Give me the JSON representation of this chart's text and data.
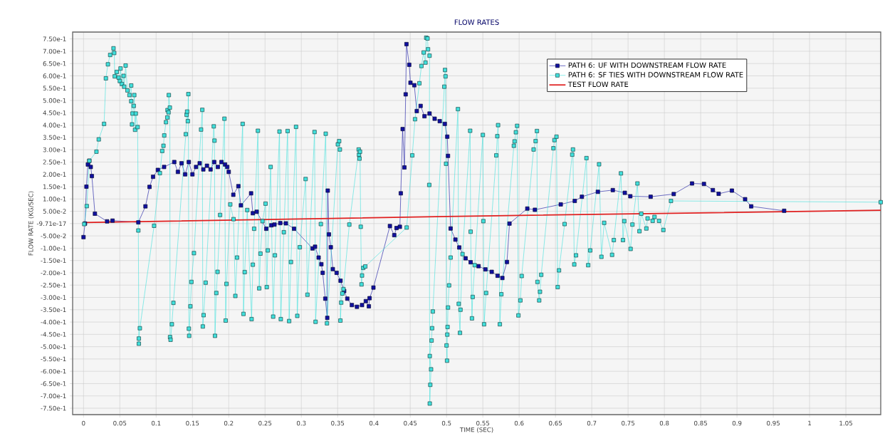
{
  "chart_data": {
    "type": "line",
    "title": "FLOW RATES",
    "xlabel": "TIME (SEC)",
    "ylabel": "FLOW RATE (KG/SEC)",
    "xlim": [
      -0.015,
      1.098
    ],
    "ylim": [
      -0.776,
      0.778
    ],
    "xticks": [
      0,
      0.05,
      0.1,
      0.15,
      0.2,
      0.25,
      0.3,
      0.35,
      0.4,
      0.45,
      0.5,
      0.55,
      0.6,
      0.65,
      0.7,
      0.75,
      0.8,
      0.85,
      0.9,
      0.95,
      1,
      1.05
    ],
    "yticks": [
      {
        "value": 0.75,
        "label": "7.50e-1"
      },
      {
        "value": 0.7,
        "label": "7.00e-1"
      },
      {
        "value": 0.65,
        "label": "6.50e-1"
      },
      {
        "value": 0.6,
        "label": "6.00e-1"
      },
      {
        "value": 0.55,
        "label": "5.50e-1"
      },
      {
        "value": 0.5,
        "label": "5.00e-1"
      },
      {
        "value": 0.45,
        "label": "4.50e-1"
      },
      {
        "value": 0.4,
        "label": "4.00e-1"
      },
      {
        "value": 0.35,
        "label": "3.50e-1"
      },
      {
        "value": 0.3,
        "label": "3.00e-1"
      },
      {
        "value": 0.25,
        "label": "2.50e-1"
      },
      {
        "value": 0.2,
        "label": "2.00e-1"
      },
      {
        "value": 0.15,
        "label": "1.50e-1"
      },
      {
        "value": 0.1,
        "label": "1.00e-1"
      },
      {
        "value": 0.05,
        "label": "5.00e-2"
      },
      {
        "value": 0,
        "label": "-9.71e-17"
      },
      {
        "value": -0.05,
        "label": "-5.00e-2"
      },
      {
        "value": -0.1,
        "label": "-1.00e-1"
      },
      {
        "value": -0.15,
        "label": "-1.50e-1"
      },
      {
        "value": -0.2,
        "label": "-2.00e-1"
      },
      {
        "value": -0.25,
        "label": "-2.50e-1"
      },
      {
        "value": -0.3,
        "label": "-3.00e-1"
      },
      {
        "value": -0.35,
        "label": "-3.50e-1"
      },
      {
        "value": -0.4,
        "label": "-4.00e-1"
      },
      {
        "value": -0.45,
        "label": "-4.50e-1"
      },
      {
        "value": -0.5,
        "label": "-5.00e-1"
      },
      {
        "value": -0.55,
        "label": "-5.50e-1"
      },
      {
        "value": -0.6,
        "label": "-6.00e-1"
      },
      {
        "value": -0.65,
        "label": "-6.50e-1"
      },
      {
        "value": -0.7,
        "label": "-7.00e-1"
      },
      {
        "value": -0.75,
        "label": "-7.50e-1"
      }
    ],
    "grid": true,
    "legend": "top right",
    "series": [
      {
        "name": "PATH 6:  UF WITH DOWNSTREAM FLOW RATE",
        "color": "#1010a0",
        "marker": "square",
        "x": [
          0,
          0.002,
          0.004,
          0.006,
          0.008,
          0.01,
          0.0115,
          0.0157,
          0.0325,
          0.04,
          0.0755,
          0.0853,
          0.0909,
          0.0958,
          0.1024,
          0.111,
          0.125,
          0.13,
          0.135,
          0.14,
          0.145,
          0.15,
          0.155,
          0.16,
          0.165,
          0.17,
          0.175,
          0.18,
          0.185,
          0.19,
          0.195,
          0.198,
          0.2,
          0.2063,
          0.2133,
          0.2168,
          0.2308,
          0.2332,
          0.2385,
          0.2517,
          0.2587,
          0.263,
          0.271,
          0.2787,
          0.29,
          0.3154,
          0.3189,
          0.3238,
          0.3276,
          0.3294,
          0.333,
          0.3357,
          0.3364,
          0.338,
          0.3406,
          0.3434,
          0.3486,
          0.354,
          0.359,
          0.3633,
          0.3696,
          0.3766,
          0.3836,
          0.3888,
          0.393,
          0.394,
          0.3993,
          0.422,
          0.428,
          0.4311,
          0.4357,
          0.437,
          0.4395,
          0.442,
          0.4437,
          0.4448,
          0.4486,
          0.4503,
          0.4556,
          0.459,
          0.4643,
          0.4696,
          0.4766,
          0.4836,
          0.4906,
          0.4976,
          0.501,
          0.502,
          0.5056,
          0.5122,
          0.5175,
          0.5262,
          0.5332,
          0.5441,
          0.5535,
          0.5622,
          0.5703,
          0.5769,
          0.5832,
          0.5867,
          0.6112,
          0.6217,
          0.6573,
          0.6766,
          0.6864,
          0.7084,
          0.729,
          0.7455,
          0.7531,
          0.7811,
          0.8129,
          0.8381,
          0.8545,
          0.8668,
          0.8748,
          0.893,
          0.9112,
          0.9196,
          0.965
        ],
        "values": [
          -0.055,
          0.0,
          0.15,
          0.24,
          0.255,
          0.23,
          0.193,
          0.04,
          0.009,
          0.012,
          0.005,
          0.07,
          0.149,
          0.19,
          0.218,
          0.23,
          0.25,
          0.21,
          0.245,
          0.2,
          0.25,
          0.2,
          0.23,
          0.245,
          0.22,
          0.235,
          0.22,
          0.25,
          0.23,
          0.25,
          0.24,
          0.23,
          0.21,
          0.117,
          0.152,
          0.074,
          0.123,
          0.042,
          0.048,
          -0.021,
          -0.007,
          -0.004,
          0.002,
          0.001,
          -0.021,
          -0.101,
          -0.094,
          -0.138,
          -0.165,
          -0.2,
          -0.305,
          -0.383,
          0.134,
          -0.044,
          -0.096,
          -0.185,
          -0.2,
          -0.232,
          -0.274,
          -0.305,
          -0.331,
          -0.338,
          -0.331,
          -0.315,
          -0.336,
          -0.303,
          -0.26,
          -0.01,
          -0.047,
          -0.018,
          -0.013,
          0.123,
          0.384,
          0.228,
          0.525,
          0.729,
          0.645,
          0.572,
          0.562,
          0.457,
          0.478,
          0.436,
          0.447,
          0.426,
          0.416,
          0.405,
          0.353,
          0.275,
          -0.02,
          -0.065,
          -0.097,
          -0.141,
          -0.157,
          -0.173,
          -0.186,
          -0.196,
          -0.212,
          -0.221,
          -0.156,
          0.0,
          0.061,
          0.056,
          0.078,
          0.092,
          0.109,
          0.129,
          0.136,
          0.125,
          0.111,
          0.109,
          0.12,
          0.163,
          0.161,
          0.136,
          0.121,
          0.134,
          0.099,
          0.07,
          0.052
        ]
      },
      {
        "name": "PATH 6:  SF TIES WITH DOWNSTREAM FLOW RATE",
        "color": "#40e0dc",
        "marker": "square",
        "x": [
          0.001,
          0.0045,
          0.008,
          0.0178,
          0.021,
          0.0283,
          0.0308,
          0.0336,
          0.0367,
          0.0413,
          0.0423,
          0.043,
          0.0458,
          0.0483,
          0.05,
          0.051,
          0.0528,
          0.0552,
          0.056,
          0.058,
          0.0605,
          0.0633,
          0.0657,
          0.0657,
          0.0668,
          0.0675,
          0.0692,
          0.0699,
          0.071,
          0.072,
          0.0745,
          0.0755,
          0.0762,
          0.0762,
          0.0776,
          0.0972,
          0.1052,
          0.1084,
          0.1101,
          0.1112,
          0.1136,
          0.1154,
          0.1157,
          0.1171,
          0.1175,
          0.1189,
          0.1192,
          0.1199,
          0.1217,
          0.1238,
          0.1409,
          0.142,
          0.1427,
          0.1437,
          0.1444,
          0.1451,
          0.1455,
          0.1472,
          0.1486,
          0.1521,
          0.1619,
          0.1636,
          0.1643,
          0.1654,
          0.1682,
          0.1794,
          0.1804,
          0.1811,
          0.1829,
          0.1846,
          0.1881,
          0.1941,
          0.1958,
          0.1969,
          0.2021,
          0.2066,
          0.2091,
          0.2115,
          0.2192,
          0.2203,
          0.222,
          0.2255,
          0.2315,
          0.2332,
          0.235,
          0.2402,
          0.242,
          0.2437,
          0.2465,
          0.2507,
          0.2524,
          0.2538,
          0.2577,
          0.2612,
          0.2636,
          0.2699,
          0.2717,
          0.2759,
          0.2811,
          0.2832,
          0.2857,
          0.2927,
          0.2944,
          0.2979,
          0.3059,
          0.3084,
          0.3182,
          0.3196,
          0.3269,
          0.3336,
          0.3353,
          0.3503,
          0.3521,
          0.3531,
          0.3538,
          0.3549,
          0.3566,
          0.358,
          0.3661,
          0.379,
          0.3794,
          0.3801,
          0.3808,
          0.3818,
          0.3829,
          0.3836,
          0.3853,
          0.3881,
          0.4451,
          0.4528,
          0.4566,
          0.4626,
          0.4654,
          0.4685,
          0.471,
          0.472,
          0.4738,
          0.4745,
          0.4766,
          0.4762,
          0.4769,
          0.4776,
          0.4787,
          0.4769,
          0.4794,
          0.4801,
          0.4811,
          0.4969,
          0.4979,
          0.4986,
          0.4993,
          0.5,
          0.5007,
          0.501,
          0.5014,
          0.502,
          0.5035,
          0.5056,
          0.5157,
          0.5168,
          0.5185,
          0.5192,
          0.522,
          0.5325,
          0.5332,
          0.535,
          0.536,
          0.5388,
          0.55,
          0.5507,
          0.5517,
          0.5545,
          0.5685,
          0.5699,
          0.571,
          0.5734,
          0.5755,
          0.5927,
          0.5937,
          0.5955,
          0.5972,
          0.599,
          0.6017,
          0.6035,
          0.6199,
          0.6227,
          0.6245,
          0.6252,
          0.6276,
          0.6287,
          0.6304,
          0.6472,
          0.6486,
          0.6514,
          0.6531,
          0.6549,
          0.6626,
          0.6731,
          0.6741,
          0.6759,
          0.6783,
          0.6927,
          0.6951,
          0.6979,
          0.7101,
          0.7133,
          0.7171,
          0.728,
          0.7304,
          0.7402,
          0.743,
          0.7448,
          0.7535,
          0.756,
          0.7629,
          0.7657,
          0.7682,
          0.7752,
          0.7769,
          0.7839,
          0.7864,
          0.7927,
          0.7986,
          0.8091,
          1.098
        ],
        "values": [
          -0.002,
          0.071,
          0.255,
          0.292,
          0.342,
          0.405,
          0.59,
          0.647,
          0.685,
          0.712,
          0.693,
          0.598,
          0.616,
          0.593,
          0.579,
          0.63,
          0.567,
          0.6,
          0.556,
          0.642,
          0.541,
          0.522,
          0.561,
          0.497,
          0.403,
          0.447,
          0.478,
          0.522,
          0.381,
          0.447,
          0.392,
          -0.028,
          -0.488,
          -0.467,
          -0.425,
          -0.009,
          0.205,
          0.295,
          0.316,
          0.358,
          0.412,
          0.431,
          0.461,
          0.452,
          0.522,
          0.471,
          -0.461,
          -0.472,
          -0.409,
          -0.322,
          0.363,
          0.442,
          0.455,
          0.416,
          0.526,
          -0.427,
          -0.456,
          -0.336,
          -0.237,
          -0.12,
          0.382,
          0.462,
          -0.418,
          -0.372,
          -0.24,
          0.395,
          0.337,
          -0.456,
          -0.282,
          -0.196,
          0.035,
          0.426,
          -0.394,
          -0.245,
          0.078,
          0.018,
          -0.294,
          -0.138,
          0.405,
          -0.367,
          -0.197,
          0.055,
          -0.388,
          -0.167,
          -0.021,
          0.377,
          -0.263,
          -0.122,
          0.01,
          0.081,
          -0.258,
          -0.109,
          0.23,
          -0.378,
          -0.129,
          0.374,
          -0.388,
          -0.035,
          0.376,
          -0.396,
          -0.156,
          0.393,
          -0.375,
          -0.096,
          0.181,
          -0.289,
          0.372,
          -0.399,
          -0.002,
          0.365,
          -0.405,
          0.322,
          0.335,
          0.301,
          -0.394,
          -0.321,
          -0.284,
          -0.266,
          -0.004,
          0.301,
          0.28,
          0.264,
          0.292,
          -0.013,
          -0.247,
          -0.211,
          -0.18,
          -0.174,
          -0.016,
          0.277,
          0.424,
          0.57,
          0.64,
          0.695,
          0.654,
          0.755,
          0.752,
          0.708,
          0.682,
          0.157,
          -0.731,
          -0.655,
          -0.592,
          -0.538,
          -0.475,
          -0.425,
          -0.357,
          0.556,
          0.624,
          0.598,
          0.243,
          -0.495,
          -0.557,
          -0.451,
          -0.42,
          -0.341,
          -0.251,
          -0.138,
          0.465,
          -0.326,
          -0.444,
          -0.35,
          -0.124,
          0.377,
          -0.033,
          -0.385,
          -0.298,
          -0.169,
          0.36,
          0.01,
          -0.409,
          -0.282,
          0.277,
          0.355,
          0.4,
          -0.409,
          -0.287,
          0.316,
          0.334,
          0.371,
          0.397,
          -0.373,
          -0.312,
          -0.213,
          0.301,
          0.335,
          0.376,
          -0.237,
          -0.312,
          -0.277,
          -0.208,
          0.306,
          0.339,
          0.353,
          -0.258,
          -0.19,
          -0.002,
          0.28,
          0.301,
          -0.166,
          -0.129,
          0.266,
          -0.169,
          -0.109,
          0.241,
          -0.135,
          0.003,
          -0.127,
          -0.067,
          0.204,
          -0.067,
          0.01,
          -0.103,
          -0.004,
          0.163,
          -0.031,
          0.04,
          -0.02,
          0.021,
          0.011,
          0.027,
          0.011,
          -0.026,
          0.092,
          0.087
        ]
      },
      {
        "name": "TEST FLOW RATE",
        "color": "#e02020",
        "marker": "none",
        "x": [
          0,
          0.5,
          1.098
        ],
        "values": [
          0.004,
          0.029,
          0.054
        ]
      }
    ]
  }
}
